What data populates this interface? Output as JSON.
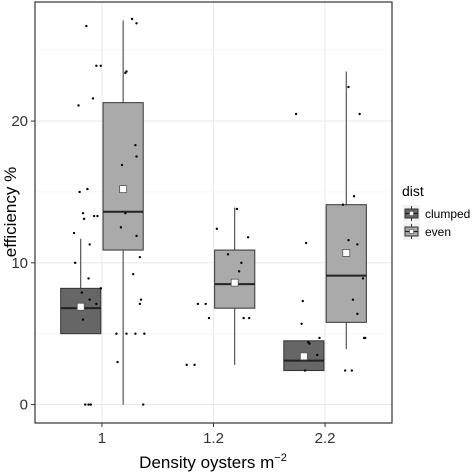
{
  "chart_data": {
    "type": "boxplot",
    "xlabel": "Density oysters m",
    "xlabel_superscript": "−2",
    "ylabel": "efficiency %",
    "categories": [
      "1",
      "1.2",
      "2.2"
    ],
    "ylim": [
      -1.3,
      28.4
    ],
    "yticks": [
      0,
      10,
      20
    ],
    "grid": true,
    "legend": {
      "title": "dist",
      "position": "right",
      "entries": [
        "clumped",
        "even"
      ]
    },
    "colors": {
      "clumped": "#666666",
      "even": "#aaaaaa",
      "panel_border": "#333333",
      "grid": "#ebebeb"
    },
    "series": [
      {
        "name": "clumped",
        "boxes": [
          {
            "category": "1",
            "whisker_low": 5.0,
            "q1": 5.0,
            "median": 6.8,
            "q3": 8.2,
            "whisker_high": 11.7,
            "mean": 6.9
          },
          null,
          {
            "category": "2.2",
            "whisker_low": 2.4,
            "q1": 2.4,
            "median": 3.1,
            "q3": 4.5,
            "whisker_high": 4.5,
            "mean": 3.4
          }
        ],
        "points": [
          [
            0.86,
            26.7
          ],
          [
            0.92,
            21.6
          ],
          [
            0.79,
            21.1
          ],
          [
            0.95,
            23.9
          ],
          [
            0.99,
            23.9
          ],
          [
            0.8,
            15.0
          ],
          [
            0.87,
            15.2
          ],
          [
            0.84,
            13.1
          ],
          [
            0.83,
            13.5
          ],
          [
            0.93,
            13.3
          ],
          [
            0.96,
            13.3
          ],
          [
            0.75,
            12.1
          ],
          [
            0.89,
            11.3
          ],
          [
            0.88,
            8.9
          ],
          [
            0.82,
            7.9
          ],
          [
            0.89,
            7.4
          ],
          [
            0.95,
            7.1
          ],
          [
            0.83,
            6.0
          ],
          [
            0.99,
            8.2
          ],
          [
            0.85,
            0.0
          ],
          [
            0.88,
            0.0
          ],
          [
            0.9,
            0.0
          ],
          [
            0.76,
            10.0
          ],
          [
            2.74,
            20.5
          ],
          [
            2.83,
            11.4
          ],
          [
            2.8,
            7.3
          ],
          [
            2.79,
            5.7
          ],
          [
            2.86,
            4.3
          ],
          [
            2.85,
            4.4
          ],
          [
            2.93,
            3.5
          ],
          [
            2.95,
            4.7
          ],
          [
            2.82,
            2.4
          ]
        ]
      },
      {
        "name": "even",
        "boxes": [
          {
            "category": "1",
            "whisker_low": 0.0,
            "q1": 10.9,
            "median": 13.6,
            "q3": 21.3,
            "whisker_high": 27.1,
            "mean": 15.2
          },
          {
            "category": "1.2",
            "whisker_low": 2.8,
            "q1": 6.8,
            "median": 8.5,
            "q3": 10.9,
            "whisker_high": 13.9,
            "mean": 8.6
          },
          {
            "category": "2.2",
            "whisker_low": 3.9,
            "q1": 5.8,
            "median": 9.1,
            "q3": 14.1,
            "whisker_high": 23.5,
            "mean": 10.7
          }
        ],
        "points": [
          [
            1.27,
            27.2
          ],
          [
            1.31,
            26.9
          ],
          [
            1.21,
            23.4
          ],
          [
            1.22,
            23.5
          ],
          [
            1.3,
            18.3
          ],
          [
            1.31,
            17.5
          ],
          [
            1.21,
            13.5
          ],
          [
            1.17,
            12.5
          ],
          [
            1.28,
            9.2
          ],
          [
            1.35,
            7.4
          ],
          [
            1.34,
            7.1
          ],
          [
            1.3,
            5.0
          ],
          [
            1.38,
            5.0
          ],
          [
            1.22,
            5.0
          ],
          [
            1.13,
            5.0
          ],
          [
            1.14,
            3.0
          ],
          [
            1.37,
            0.0
          ],
          [
            1.34,
            10.4
          ],
          [
            1.31,
            11.9
          ],
          [
            1.18,
            16.9
          ],
          [
            1.76,
            2.8
          ],
          [
            1.83,
            2.8
          ],
          [
            1.86,
            7.1
          ],
          [
            1.93,
            7.1
          ],
          [
            1.96,
            6.1
          ],
          [
            2.21,
            13.8
          ],
          [
            2.25,
            10.0
          ],
          [
            2.13,
            10.6
          ],
          [
            2.23,
            9.4
          ],
          [
            2.27,
            6.1
          ],
          [
            2.32,
            6.1
          ],
          [
            2.31,
            11.8
          ],
          [
            2.03,
            12.4
          ],
          [
            3.21,
            22.4
          ],
          [
            3.31,
            20.5
          ],
          [
            3.26,
            14.7
          ],
          [
            3.16,
            14.1
          ],
          [
            3.21,
            11.6
          ],
          [
            3.29,
            11.3
          ],
          [
            3.34,
            8.9
          ],
          [
            3.25,
            7.4
          ],
          [
            3.29,
            6.4
          ],
          [
            3.35,
            4.7
          ],
          [
            3.36,
            4.7
          ],
          [
            3.18,
            2.4
          ],
          [
            3.24,
            2.4
          ]
        ]
      }
    ]
  }
}
